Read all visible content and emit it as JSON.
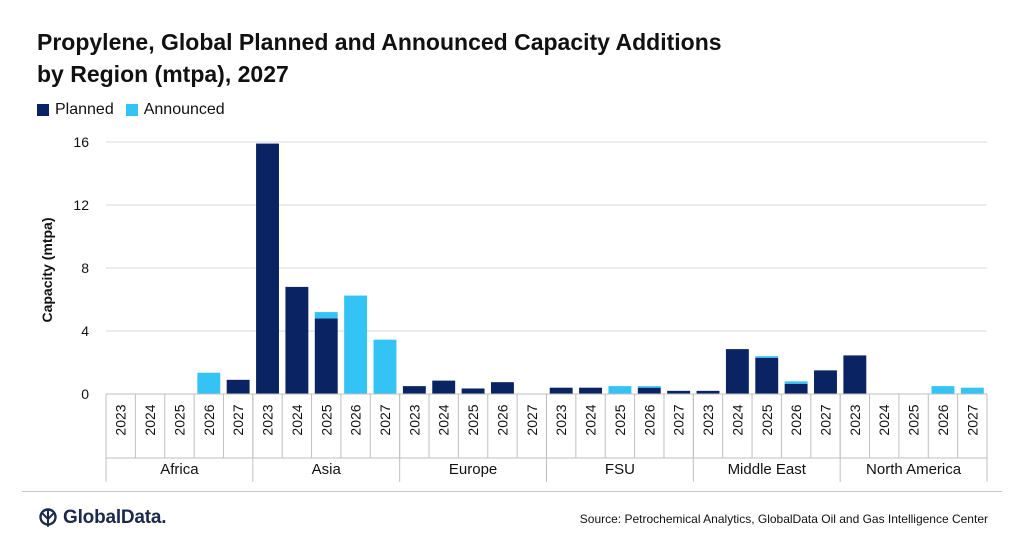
{
  "header": {
    "title_line1": "Propylene, Global Planned and Announced Capacity Additions",
    "title_line2": "by Region (mtpa), 2027"
  },
  "footer": {
    "logo_text": "GlobalData.",
    "source": "Source: Petrochemical Analytics, GlobalData Oil and Gas Intelligence Center"
  },
  "colors": {
    "planned": "#0a2463",
    "announced": "#33c3f5",
    "grid": "#d9d9d9",
    "axis": "#bfbfbf"
  },
  "chart_data": {
    "type": "bar",
    "stacked": true,
    "title": "Propylene, Global Planned and Announced Capacity Additions by Region (mtpa), 2027",
    "xlabel": "",
    "ylabel": "Capacity (mtpa)",
    "ylim": [
      0,
      16
    ],
    "yticks": [
      0,
      4,
      8,
      12,
      16
    ],
    "grid": true,
    "legend_position": "top-left",
    "groups": [
      "Africa",
      "Asia",
      "Europe",
      "FSU",
      "Middle East",
      "North America"
    ],
    "years": [
      "2023",
      "2024",
      "2025",
      "2026",
      "2027"
    ],
    "series": [
      {
        "name": "Planned",
        "values": [
          [
            0,
            0,
            0,
            0,
            0.9
          ],
          [
            15.9,
            6.8,
            4.8,
            0,
            0
          ],
          [
            0.5,
            0.85,
            0.35,
            0.75,
            0
          ],
          [
            0.4,
            0.4,
            0,
            0.4,
            0.2
          ],
          [
            0.2,
            2.85,
            2.3,
            0.65,
            1.5
          ],
          [
            2.45,
            0,
            0,
            0,
            0
          ]
        ]
      },
      {
        "name": "Announced",
        "values": [
          [
            0,
            0,
            0,
            1.35,
            0
          ],
          [
            0,
            0,
            0.4,
            6.25,
            3.45
          ],
          [
            0,
            0,
            0,
            0,
            0
          ],
          [
            0,
            0,
            0.5,
            0.1,
            0
          ],
          [
            0,
            0,
            0.1,
            0.15,
            0
          ],
          [
            0,
            0,
            0,
            0.5,
            0.4
          ]
        ]
      }
    ]
  }
}
